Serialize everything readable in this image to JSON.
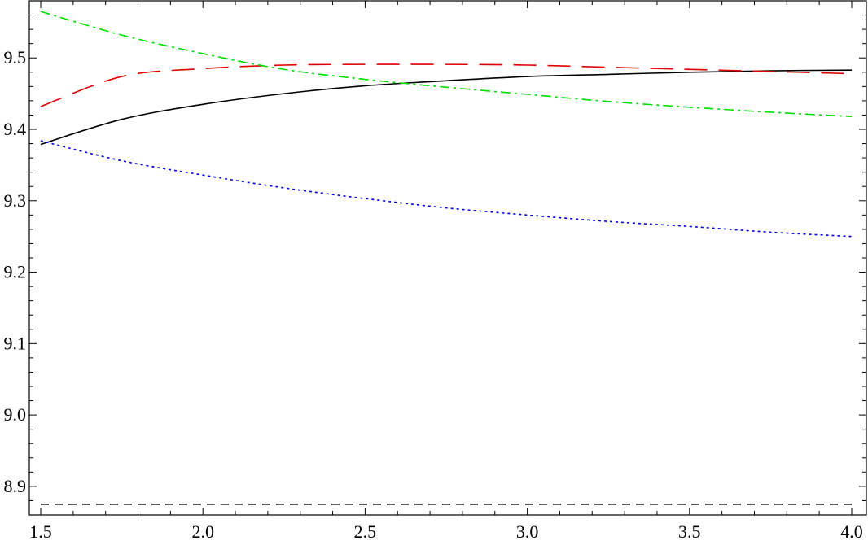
{
  "chart_data": {
    "type": "line",
    "title": "",
    "xlabel": "",
    "ylabel": "",
    "xlim": [
      1.5,
      4.0
    ],
    "ylim": [
      8.86,
      9.58
    ],
    "grid": false,
    "x_ticks": [
      1.5,
      2.0,
      2.5,
      3.0,
      3.5,
      4.0
    ],
    "x_tick_labels": [
      "1.5",
      "2.0",
      "2.5",
      "3.0",
      "3.5",
      "4.0"
    ],
    "y_ticks": [
      8.9,
      9.0,
      9.1,
      9.2,
      9.3,
      9.4,
      9.5
    ],
    "y_tick_labels": [
      "8.9",
      "9.0",
      "9.1",
      "9.2",
      "9.3",
      "9.4",
      "9.5"
    ],
    "series": [
      {
        "style": "solid",
        "color": "#000000",
        "x": [
          1.5,
          1.75,
          2.0,
          2.25,
          2.5,
          2.75,
          3.0,
          3.25,
          3.5,
          3.75,
          4.0
        ],
        "y": [
          9.379,
          9.414,
          9.435,
          9.45,
          9.461,
          9.468,
          9.474,
          9.477,
          9.48,
          9.482,
          9.483
        ]
      },
      {
        "style": "long-dash",
        "color": "#dd0000",
        "x": [
          1.5,
          1.75,
          2.0,
          2.25,
          2.5,
          2.75,
          3.0,
          3.25,
          3.5,
          3.75,
          4.0
        ],
        "y": [
          9.432,
          9.474,
          9.485,
          9.49,
          9.491,
          9.491,
          9.49,
          9.487,
          9.484,
          9.481,
          9.478
        ]
      },
      {
        "style": "dash-dot",
        "color": "#00dd00",
        "x": [
          1.5,
          1.75,
          2.0,
          2.25,
          2.5,
          2.75,
          3.0,
          3.25,
          3.5,
          3.75,
          4.0
        ],
        "y": [
          9.565,
          9.532,
          9.506,
          9.484,
          9.47,
          9.459,
          9.449,
          9.439,
          9.431,
          9.424,
          9.418
        ]
      },
      {
        "style": "dotted",
        "color": "#0000dd",
        "x": [
          1.5,
          1.75,
          2.0,
          2.25,
          2.5,
          2.75,
          3.0,
          3.25,
          3.5,
          3.75,
          4.0
        ],
        "y": [
          9.384,
          9.356,
          9.336,
          9.318,
          9.303,
          9.29,
          9.28,
          9.271,
          9.264,
          9.256,
          9.25
        ]
      },
      {
        "style": "dashed",
        "color": "#000000",
        "x": [
          1.5,
          4.0
        ],
        "y": [
          8.875,
          8.875
        ]
      }
    ]
  }
}
